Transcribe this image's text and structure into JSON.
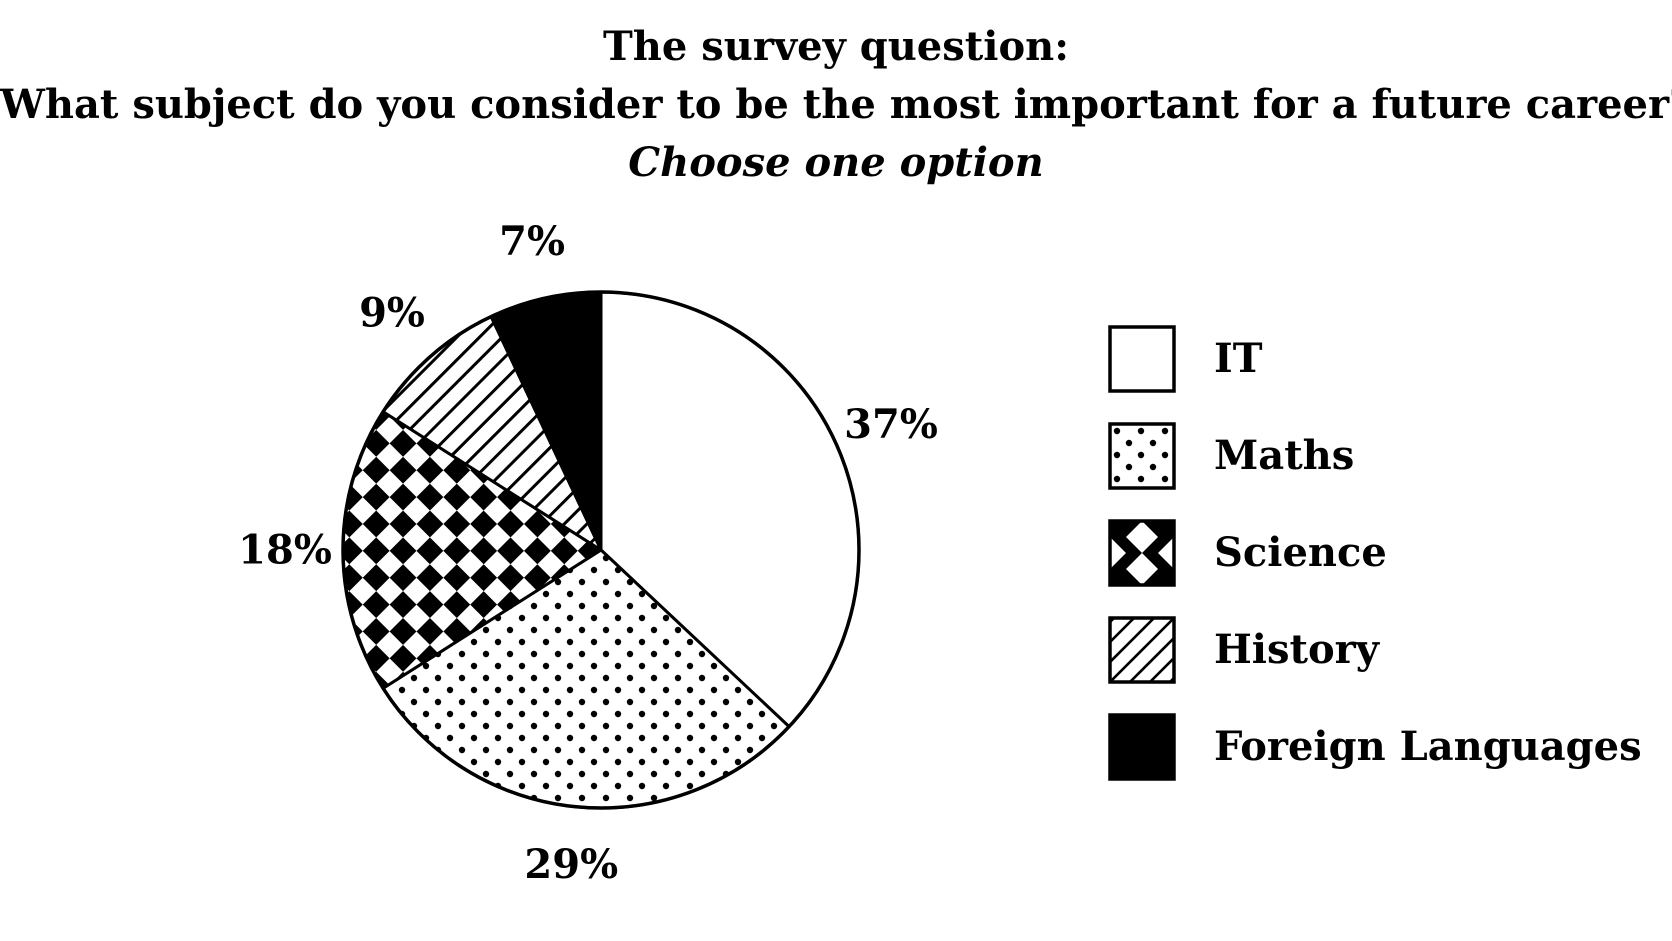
{
  "chart_data": {
    "type": "pie",
    "title": "The survey question:",
    "question": "What subject do you consider to be the most important for a future career?",
    "subtitle": "Choose one option",
    "slices": [
      {
        "label": "IT",
        "value": 37,
        "display": "37%",
        "pattern": "white"
      },
      {
        "label": "Maths",
        "value": 29,
        "display": "29%",
        "pattern": "dots"
      },
      {
        "label": "Science",
        "value": 18,
        "display": "18%",
        "pattern": "checker"
      },
      {
        "label": "History",
        "value": 9,
        "display": "9%",
        "pattern": "hatch"
      },
      {
        "label": "Foreign Languages",
        "value": 7,
        "display": "7%",
        "pattern": "black"
      }
    ],
    "start": "12 o'clock",
    "direction": "clockwise",
    "legend_position": "right"
  },
  "colors": {
    "ink": "#000000",
    "paper": "#ffffff"
  }
}
